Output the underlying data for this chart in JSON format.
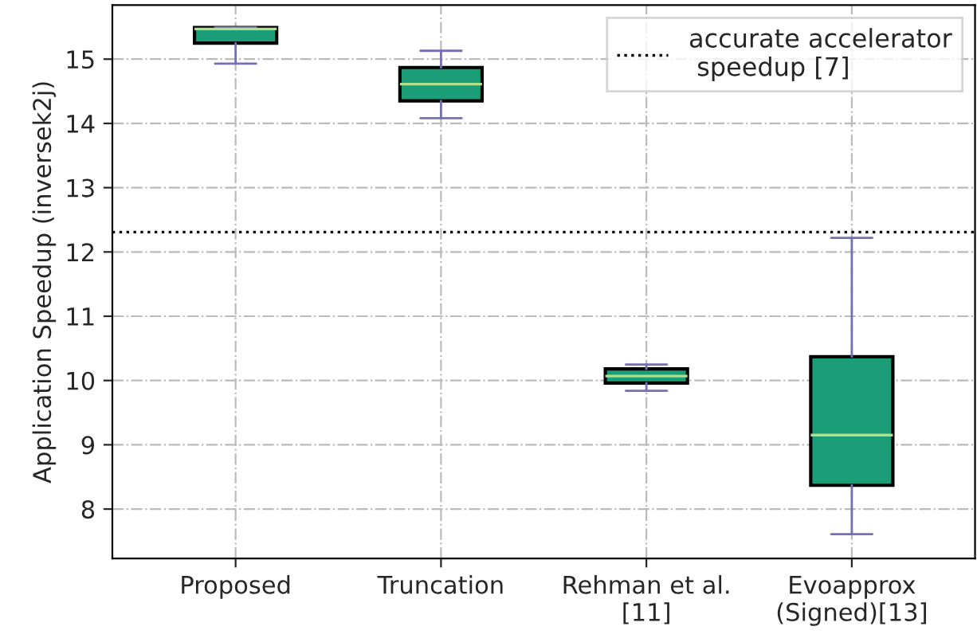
{
  "chart_data": {
    "type": "box",
    "ylabel": "Application Speedup (inversek2j)",
    "categories": [
      "Proposed",
      "Truncation",
      "Rehman et al.\n[11]",
      "Evoapprox\n(Signed)[13]"
    ],
    "boxes": [
      {
        "low": 14.93,
        "q1": 15.25,
        "median": 15.47,
        "q3": 15.49,
        "high": 15.49
      },
      {
        "low": 14.08,
        "q1": 14.35,
        "median": 14.61,
        "q3": 14.87,
        "high": 15.13
      },
      {
        "low": 9.84,
        "q1": 9.96,
        "median": 10.07,
        "q3": 10.18,
        "high": 10.25
      },
      {
        "low": 7.61,
        "q1": 8.37,
        "median": 9.15,
        "q3": 10.37,
        "high": 12.22
      }
    ],
    "color": "#1b9e77",
    "ylim": [
      7.23,
      15.84
    ],
    "yticks": [
      8,
      9,
      10,
      11,
      12,
      13,
      14,
      15
    ],
    "ref_lines": [
      {
        "axis": "y",
        "value": 12.31,
        "label": "accurate accelerator\n speedup [7]",
        "color": "#000000",
        "line_style": "dotted"
      }
    ],
    "grid": true,
    "legend": "top right"
  }
}
